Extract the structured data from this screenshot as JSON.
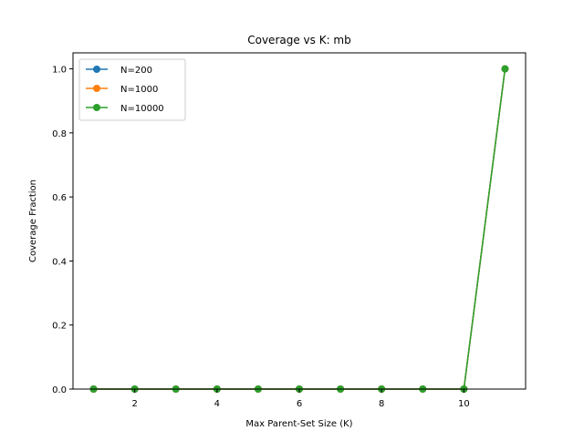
{
  "chart_data": {
    "type": "line",
    "title": "Coverage vs K: mb",
    "xlabel": "Max Parent-Set Size (K)",
    "ylabel": "Coverage Fraction",
    "x": [
      1,
      2,
      3,
      4,
      5,
      6,
      7,
      8,
      9,
      10,
      11
    ],
    "xlim": [
      0.5,
      11.5
    ],
    "ylim": [
      0,
      1.05
    ],
    "xticks": [
      2,
      4,
      6,
      8,
      10
    ],
    "yticks": [
      0.0,
      0.2,
      0.4,
      0.6,
      0.8,
      1.0
    ],
    "xtick_labels": [
      "2",
      "4",
      "6",
      "8",
      "10"
    ],
    "ytick_labels": [
      "0.0",
      "0.2",
      "0.4",
      "0.6",
      "0.8",
      "1.0"
    ],
    "grid": false,
    "legend_position": "top-left",
    "series": [
      {
        "name": "N=200",
        "color": "#1f77b4",
        "marker": "circle",
        "values": [
          0,
          0,
          0,
          0,
          0,
          0,
          0,
          0,
          0,
          0,
          1.0
        ]
      },
      {
        "name": "N=1000",
        "color": "#ff7f0e",
        "marker": "circle",
        "values": [
          0,
          0,
          0,
          0,
          0,
          0,
          0,
          0,
          0,
          0,
          1.0
        ]
      },
      {
        "name": "N=10000",
        "color": "#2ca02c",
        "marker": "circle",
        "values": [
          0,
          0,
          0,
          0,
          0,
          0,
          0,
          0,
          0,
          0,
          1.0
        ]
      }
    ]
  }
}
